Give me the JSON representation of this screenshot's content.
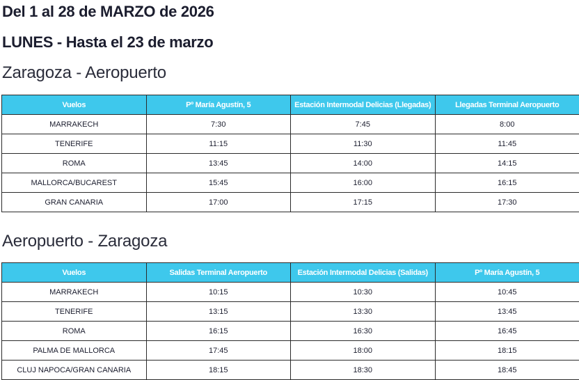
{
  "title": "Del 1 al 28 de MARZO de 2026",
  "subtitle": "LUNES - Hasta el 23 de marzo",
  "colors": {
    "header_bg": "#3ec8ec",
    "header_text": "#ffffff"
  },
  "sections": [
    {
      "heading": "Zaragoza - Aeropuerto",
      "columns": [
        "Vuelos",
        "Pº María Agustín, 5",
        "Estación Intermodal Delicias (Llegadas)",
        "Llegadas Terminal Aeropuerto"
      ],
      "rows": [
        [
          "MARRAKECH",
          "7:30",
          "7:45",
          "8:00"
        ],
        [
          "TENERIFE",
          "11:15",
          "11:30",
          "11:45"
        ],
        [
          "ROMA",
          "13:45",
          "14:00",
          "14:15"
        ],
        [
          "MALLORCA/BUCAREST",
          "15:45",
          "16:00",
          "16:15"
        ],
        [
          "GRAN CANARIA",
          "17:00",
          "17:15",
          "17:30"
        ]
      ]
    },
    {
      "heading": "Aeropuerto - Zaragoza",
      "columns": [
        "Vuelos",
        "Salidas Terminal Aeropuerto",
        "Estación Intermodal Delicias (Salidas)",
        "Pº María Agustín, 5"
      ],
      "rows": [
        [
          "MARRAKECH",
          "10:15",
          "10:30",
          "10:45"
        ],
        [
          "TENERIFE",
          "13:15",
          "13:30",
          "13:45"
        ],
        [
          "ROMA",
          "16:15",
          "16:30",
          "16:45"
        ],
        [
          "PALMA DE MALLORCA",
          "17:45",
          "18:00",
          "18:15"
        ],
        [
          "CLUJ NAPOCA/GRAN CANARIA",
          "18:15",
          "18:30",
          "18:45"
        ]
      ]
    }
  ]
}
